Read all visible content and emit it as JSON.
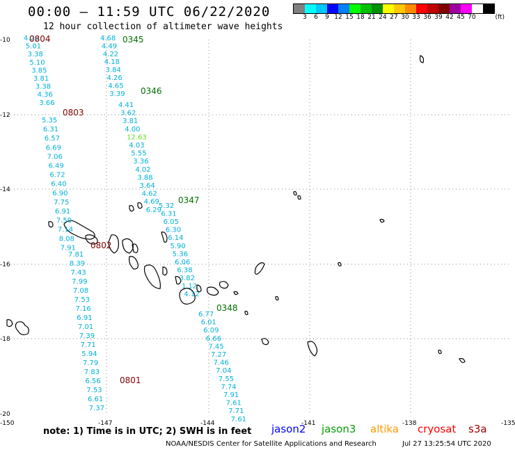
{
  "title": "00:00 – 11:59 UTC 06/22/2020",
  "subtitle": "12 hour collection of altimeter wave heights",
  "legend": {
    "colors": [
      "#808080",
      "#00ffff",
      "#00c8ff",
      "#0000ff",
      "#007fff",
      "#00ff00",
      "#00c000",
      "#009000",
      "#ffff00",
      "#ffc800",
      "#ff8c00",
      "#ff0000",
      "#c00000",
      "#800000",
      "#a000a0",
      "#ff00ff",
      "#ffffff",
      "#000000"
    ],
    "labels": [
      "3",
      "6",
      "9",
      "12",
      "15",
      "18",
      "21",
      "24",
      "27",
      "30",
      "33",
      "36",
      "39",
      "42",
      "45",
      "70"
    ],
    "unit": "(ft)"
  },
  "map": {
    "lat_labels": [
      "-10",
      "-12",
      "-14",
      "-16",
      "-18",
      "-20"
    ],
    "lon_labels": [
      "-150",
      "-147",
      "-144",
      "-141",
      "-138",
      "-135"
    ]
  },
  "tracks": [
    {
      "time": "0804",
      "color": "#800000",
      "values": [
        "4.20",
        "5.01",
        "3.38",
        "5.10",
        "3.85",
        "3.81",
        "3.38",
        "4.36",
        "3.66"
      ]
    },
    {
      "time": "0803",
      "color": "#800000",
      "values": [
        "5.35",
        "6.31",
        "6.57",
        "6.69",
        "7.06",
        "6.49",
        "6.72",
        "6.40",
        "6.90",
        "7.75",
        "6.91",
        "7.50",
        "7.14",
        "8.08",
        "7.91"
      ]
    },
    {
      "time": "0802",
      "color": "#800000",
      "values": [
        "7.81",
        "8.39",
        "7.43",
        "7.99",
        "7.08",
        "7.53",
        "7.16",
        "6.91",
        "7.01",
        "7.39",
        "7.71",
        "5.94",
        "7.79",
        "7.83",
        "6.56",
        "7.53",
        "6.61",
        "7.37"
      ]
    },
    {
      "time": "0801",
      "color": "#800000",
      "values": []
    },
    {
      "time": "0345",
      "color": "#007000",
      "values": [
        "4.68",
        "4.49",
        "4.22",
        "4.18",
        "3.84",
        "4.26",
        "4.65",
        "3.39"
      ]
    },
    {
      "time": "0346",
      "color": "#007000",
      "values": [
        "4.41",
        "3.62",
        "3.81",
        "4.00",
        "12.63",
        "4.03",
        "5.55",
        "3.36",
        "4.02",
        "3.88",
        "3.64",
        "4.62",
        "4.69",
        "6.29"
      ]
    },
    {
      "time": "0347",
      "color": "#007000",
      "values": [
        "5.32",
        "6.31",
        "6.05",
        "6.30",
        "6.14",
        "5.90",
        "5.36",
        "6.06",
        "6.38",
        "3.82",
        "1.12",
        "4.12"
      ]
    },
    {
      "time": "0348",
      "color": "#007000",
      "values": [
        "6.77",
        "6.01",
        "6.09",
        "6.66",
        "7.45",
        "7.27",
        "7.46",
        "7.04",
        "7.55",
        "7.74",
        "7.91",
        "7.61",
        "7.71",
        "7.61"
      ]
    }
  ],
  "note": "note:  1) Time is in UTC;  2) SWH is in feet",
  "satellites": [
    {
      "name": "jason2",
      "color": "#0000ff"
    },
    {
      "name": "jason3",
      "color": "#00a000"
    },
    {
      "name": "altika",
      "color": "#ff9900"
    },
    {
      "name": "cryosat",
      "color": "#ff0000"
    },
    {
      "name": "s3a",
      "color": "#a00000"
    }
  ],
  "credit": "NOAA/NESDIS Center for Satellite Applications and Research",
  "timestamp": "Jul 27 13:25:54 UTC 2020"
}
